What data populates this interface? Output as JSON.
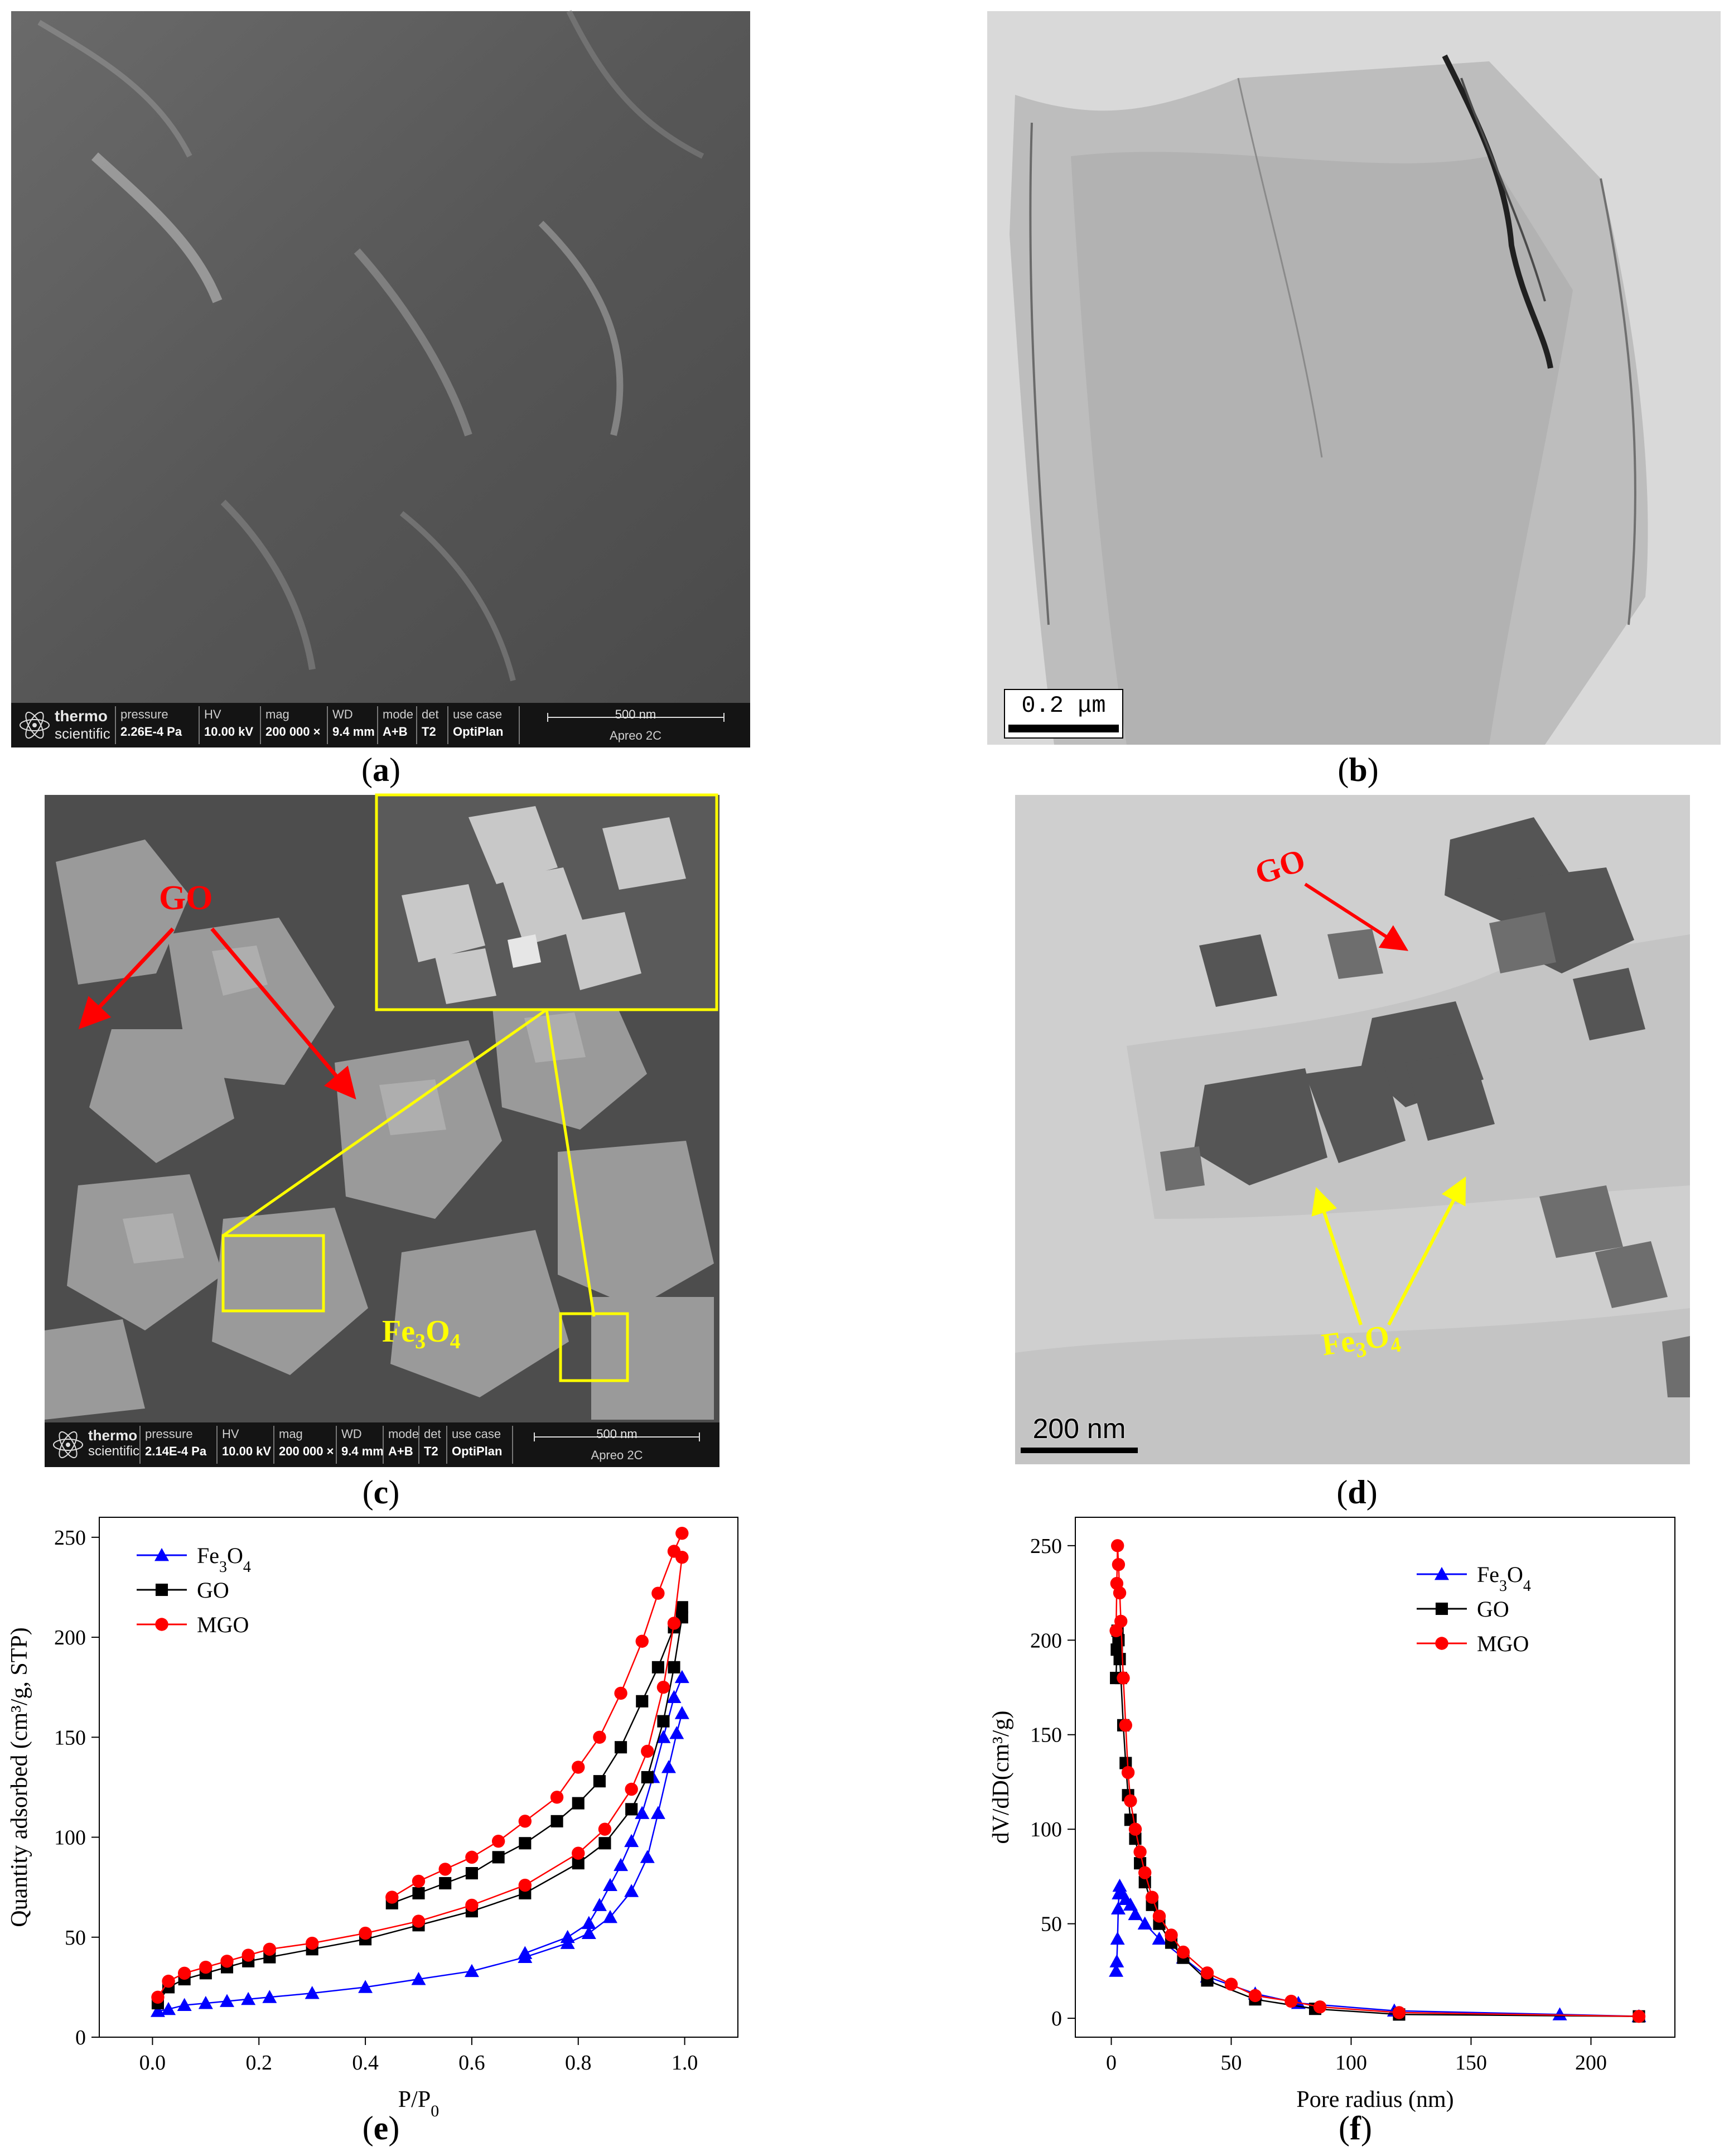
{
  "panels": {
    "a": {
      "label": "a"
    },
    "b": {
      "label": "b",
      "scale_bar": "0.2 μm"
    },
    "c": {
      "label": "c",
      "annot_go": "GO",
      "annot_fe": "Fe",
      "annot_fe_sub1": "3",
      "annot_fe_mid": "O",
      "annot_fe_sub2": "4"
    },
    "d": {
      "label": "d",
      "scale_bar": "200 nm",
      "annot_go": "GO",
      "annot_fe": "Fe",
      "annot_fe_sub1": "3",
      "annot_fe_mid": "O",
      "annot_fe_sub2": "4"
    },
    "e": {
      "label": "e"
    },
    "f": {
      "label": "f"
    }
  },
  "sem_a": {
    "logo_top": "thermo",
    "logo_bottom": "scientific",
    "fields": [
      {
        "h": "pressure",
        "v": "2.26E-4 Pa"
      },
      {
        "h": "HV",
        "v": "10.00 kV"
      },
      {
        "h": "mag",
        "v": "200 000 ×"
      },
      {
        "h": "WD",
        "v": "9.4 mm"
      },
      {
        "h": "mode",
        "v": "A+B"
      },
      {
        "h": "det",
        "v": "T2"
      },
      {
        "h": "use case",
        "v": "OptiPlan"
      }
    ],
    "scale": "500 nm",
    "instrument": "Apreo 2C"
  },
  "sem_c": {
    "logo_top": "thermo",
    "logo_bottom": "scientific",
    "fields": [
      {
        "h": "pressure",
        "v": "2.14E-4 Pa"
      },
      {
        "h": "HV",
        "v": "10.00 kV"
      },
      {
        "h": "mag",
        "v": "200 000 ×"
      },
      {
        "h": "WD",
        "v": "9.4 mm"
      },
      {
        "h": "mode",
        "v": "A+B"
      },
      {
        "h": "det",
        "v": "T2"
      },
      {
        "h": "use case",
        "v": "OptiPlan"
      }
    ],
    "scale": "500 nm",
    "instrument": "Apreo 2C"
  },
  "chart_data": [
    {
      "type": "line",
      "xlabel": "P/P",
      "xlabel_sub": "0",
      "ylabel": "Quantity adsorbed (cm³/g, STP)",
      "xlim": [
        -0.1,
        1.1
      ],
      "ylim": [
        0,
        260
      ],
      "xticks": [
        "0.0",
        "0.2",
        "0.4",
        "0.6",
        "0.8",
        "1.0"
      ],
      "yticks": [
        "0",
        "50",
        "100",
        "150",
        "200",
        "250"
      ],
      "legend_position": "top-left",
      "series": [
        {
          "name": "Fe3O4",
          "color": "#0000ff",
          "marker": "triangle",
          "adsorption": [
            [
              0.01,
              13
            ],
            [
              0.03,
              14
            ],
            [
              0.06,
              16
            ],
            [
              0.1,
              17
            ],
            [
              0.14,
              18
            ],
            [
              0.18,
              19
            ],
            [
              0.22,
              20
            ],
            [
              0.3,
              22
            ],
            [
              0.4,
              25
            ],
            [
              0.5,
              29
            ],
            [
              0.6,
              33
            ],
            [
              0.7,
              40
            ],
            [
              0.78,
              47
            ],
            [
              0.82,
              52
            ],
            [
              0.86,
              60
            ],
            [
              0.9,
              73
            ],
            [
              0.93,
              90
            ],
            [
              0.95,
              112
            ],
            [
              0.97,
              135
            ],
            [
              0.985,
              152
            ],
            [
              0.995,
              162
            ]
          ],
          "desorption": [
            [
              0.995,
              180
            ],
            [
              0.98,
              170
            ],
            [
              0.96,
              150
            ],
            [
              0.94,
              130
            ],
            [
              0.92,
              112
            ],
            [
              0.9,
              98
            ],
            [
              0.88,
              86
            ],
            [
              0.86,
              76
            ],
            [
              0.84,
              66
            ],
            [
              0.82,
              57
            ],
            [
              0.78,
              50
            ],
            [
              0.7,
              42
            ]
          ]
        },
        {
          "name": "GO",
          "color": "#000000",
          "marker": "square",
          "adsorption": [
            [
              0.01,
              17
            ],
            [
              0.03,
              25
            ],
            [
              0.06,
              29
            ],
            [
              0.1,
              32
            ],
            [
              0.14,
              35
            ],
            [
              0.18,
              38
            ],
            [
              0.22,
              40
            ],
            [
              0.3,
              44
            ],
            [
              0.4,
              49
            ],
            [
              0.5,
              56
            ],
            [
              0.6,
              63
            ],
            [
              0.7,
              72
            ],
            [
              0.8,
              87
            ],
            [
              0.85,
              97
            ],
            [
              0.9,
              114
            ],
            [
              0.93,
              130
            ],
            [
              0.96,
              158
            ],
            [
              0.98,
              185
            ],
            [
              0.995,
              210
            ]
          ],
          "desorption": [
            [
              0.995,
              215
            ],
            [
              0.98,
              205
            ],
            [
              0.95,
              185
            ],
            [
              0.92,
              168
            ],
            [
              0.88,
              145
            ],
            [
              0.84,
              128
            ],
            [
              0.8,
              117
            ],
            [
              0.76,
              108
            ],
            [
              0.7,
              97
            ],
            [
              0.65,
              90
            ],
            [
              0.6,
              82
            ],
            [
              0.55,
              77
            ],
            [
              0.5,
              72
            ],
            [
              0.45,
              67
            ]
          ]
        },
        {
          "name": "MGO",
          "color": "#ff0000",
          "marker": "circle",
          "adsorption": [
            [
              0.01,
              20
            ],
            [
              0.03,
              28
            ],
            [
              0.06,
              32
            ],
            [
              0.1,
              35
            ],
            [
              0.14,
              38
            ],
            [
              0.18,
              41
            ],
            [
              0.22,
              44
            ],
            [
              0.3,
              47
            ],
            [
              0.4,
              52
            ],
            [
              0.5,
              58
            ],
            [
              0.6,
              66
            ],
            [
              0.7,
              76
            ],
            [
              0.8,
              92
            ],
            [
              0.85,
              104
            ],
            [
              0.9,
              124
            ],
            [
              0.93,
              143
            ],
            [
              0.96,
              175
            ],
            [
              0.98,
              207
            ],
            [
              0.995,
              240
            ]
          ],
          "desorption": [
            [
              0.995,
              252
            ],
            [
              0.98,
              243
            ],
            [
              0.95,
              222
            ],
            [
              0.92,
              198
            ],
            [
              0.88,
              172
            ],
            [
              0.84,
              150
            ],
            [
              0.8,
              135
            ],
            [
              0.76,
              120
            ],
            [
              0.7,
              108
            ],
            [
              0.65,
              98
            ],
            [
              0.6,
              90
            ],
            [
              0.55,
              84
            ],
            [
              0.5,
              78
            ],
            [
              0.45,
              70
            ]
          ]
        }
      ]
    },
    {
      "type": "line",
      "xlabel": "Pore radius (nm)",
      "ylabel": "dV/dD(cm³/g)",
      "xlim": [
        -15,
        235
      ],
      "ylim": [
        -10,
        265
      ],
      "xticks": [
        "0",
        "50",
        "100",
        "150",
        "200"
      ],
      "yticks": [
        "0",
        "50",
        "100",
        "150",
        "200",
        "250"
      ],
      "legend_position": "top-right",
      "series": [
        {
          "name": "Fe3O4",
          "color": "#0000ff",
          "marker": "triangle",
          "points": [
            [
              2,
              25
            ],
            [
              2.3,
              30
            ],
            [
              2.6,
              42
            ],
            [
              2.9,
              58
            ],
            [
              3.2,
              66
            ],
            [
              3.5,
              70
            ],
            [
              4.5,
              66
            ],
            [
              6,
              63
            ],
            [
              8,
              60
            ],
            [
              10,
              55
            ],
            [
              14,
              50
            ],
            [
              20,
              42
            ],
            [
              30,
              32
            ],
            [
              40,
              22
            ],
            [
              60,
              13
            ],
            [
              78,
              8
            ],
            [
              118,
              4
            ],
            [
              187,
              2
            ],
            [
              220,
              1
            ]
          ]
        },
        {
          "name": "GO",
          "color": "#000000",
          "marker": "square",
          "points": [
            [
              2,
              180
            ],
            [
              2.3,
              195
            ],
            [
              2.6,
              205
            ],
            [
              3,
              200
            ],
            [
              3.5,
              190
            ],
            [
              4,
              180
            ],
            [
              5,
              155
            ],
            [
              6,
              135
            ],
            [
              7,
              118
            ],
            [
              8,
              105
            ],
            [
              10,
              95
            ],
            [
              12,
              82
            ],
            [
              14,
              72
            ],
            [
              17,
              60
            ],
            [
              20,
              50
            ],
            [
              25,
              40
            ],
            [
              30,
              32
            ],
            [
              40,
              20
            ],
            [
              60,
              10
            ],
            [
              85,
              5
            ],
            [
              120,
              2
            ],
            [
              220,
              1
            ]
          ]
        },
        {
          "name": "MGO",
          "color": "#ff0000",
          "marker": "circle",
          "points": [
            [
              2,
              205
            ],
            [
              2.3,
              230
            ],
            [
              2.6,
              250
            ],
            [
              3,
              240
            ],
            [
              3.5,
              225
            ],
            [
              4,
              210
            ],
            [
              5,
              180
            ],
            [
              6,
              155
            ],
            [
              7,
              130
            ],
            [
              8,
              115
            ],
            [
              10,
              100
            ],
            [
              12,
              88
            ],
            [
              14,
              77
            ],
            [
              17,
              64
            ],
            [
              20,
              54
            ],
            [
              25,
              44
            ],
            [
              30,
              35
            ],
            [
              40,
              24
            ],
            [
              50,
              18
            ],
            [
              60,
              12
            ],
            [
              75,
              9
            ],
            [
              87,
              6
            ],
            [
              120,
              3
            ],
            [
              220,
              1
            ]
          ]
        }
      ]
    }
  ]
}
